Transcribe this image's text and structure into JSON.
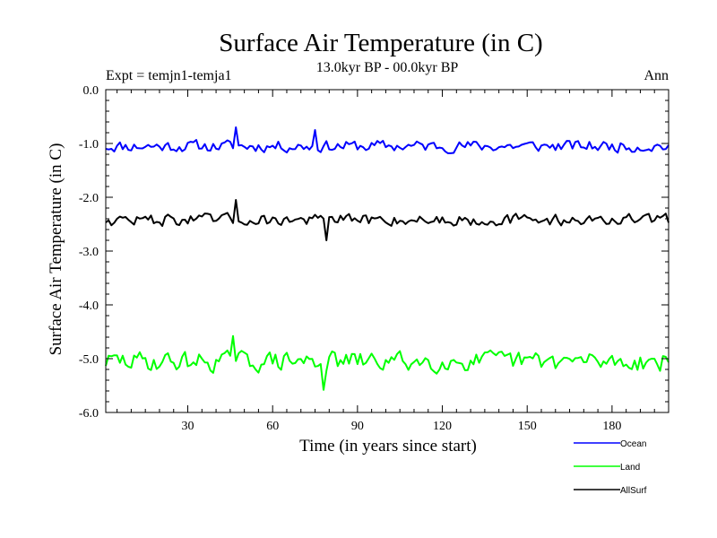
{
  "chart_data": {
    "type": "line",
    "title": "Surface Air Temperature (in C)",
    "subtitle": "13.0kyr BP - 00.0kyr BP",
    "left_label": "Expt = temjn1-temja1",
    "right_label": "Ann",
    "xlabel": "Time (in years since start)",
    "ylabel": "Surface Air Temperature (in C)",
    "xlim": [
      1,
      200
    ],
    "ylim": [
      -6.0,
      0.0
    ],
    "xticks": [
      30,
      60,
      90,
      120,
      150,
      180
    ],
    "yticks": [
      0.0,
      -1.0,
      -2.0,
      -3.0,
      -4.0,
      -5.0,
      -6.0
    ],
    "ytick_labels": [
      "0.0",
      "-1.0",
      "-2.0",
      "-3.0",
      "-4.0",
      "-5.0",
      "-6.0"
    ],
    "legend_position": "bottom-right outside",
    "series": [
      {
        "name": "Ocean",
        "color": "#0000ff",
        "mean": -1.05,
        "amplitude": 0.13,
        "spike_years": [
          47,
          75
        ],
        "spike_values": [
          -0.7,
          -0.75
        ],
        "seed": 11
      },
      {
        "name": "Land",
        "color": "#00ff00",
        "mean": -5.05,
        "amplitude": 0.22,
        "spike_years": [
          46,
          78
        ],
        "spike_values": [
          -4.58,
          -5.58
        ],
        "seed": 29
      },
      {
        "name": "AllSurf",
        "color": "#000000",
        "mean": -2.42,
        "amplitude": 0.13,
        "spike_years": [
          47,
          79
        ],
        "spike_values": [
          -2.05,
          -2.8
        ],
        "seed": 47
      }
    ]
  }
}
